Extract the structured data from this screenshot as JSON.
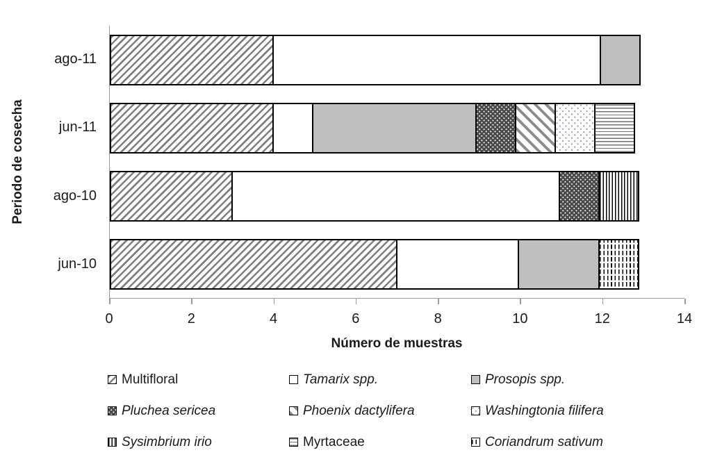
{
  "chart_data": {
    "type": "bar",
    "orientation": "horizontal",
    "stacked": true,
    "title": "",
    "categories": [
      "ago-11",
      "jun-11",
      "ago-10",
      "jun-10"
    ],
    "series": [
      {
        "name": "Multifloral",
        "pattern": "diagonal-hatch-forward",
        "italic": false,
        "values": [
          4,
          4,
          3,
          7
        ]
      },
      {
        "name": "Tamarix spp.",
        "pattern": "solid-white",
        "italic": true,
        "values": [
          8,
          1,
          8,
          3
        ]
      },
      {
        "name": "Prosopis spp.",
        "pattern": "solid-gray",
        "italic": true,
        "values": [
          1,
          4,
          0,
          2
        ]
      },
      {
        "name": "Pluchea sericea",
        "pattern": "dark-white-dots",
        "italic": true,
        "values": [
          0,
          1,
          1,
          0
        ]
      },
      {
        "name": "Phoenix dactylifera",
        "pattern": "diagonal-hatch-back",
        "italic": true,
        "values": [
          0,
          1,
          0,
          0
        ]
      },
      {
        "name": "Washingtonia filifera",
        "pattern": "light-blue-dots",
        "italic": true,
        "values": [
          0,
          1,
          0,
          0
        ]
      },
      {
        "name": "Sysimbrium irio",
        "pattern": "vertical-lines",
        "italic": true,
        "values": [
          0,
          0,
          1,
          0
        ]
      },
      {
        "name": "Myrtaceae",
        "pattern": "horizontal-lines",
        "italic": false,
        "values": [
          0,
          1,
          0,
          0
        ]
      },
      {
        "name": "Coriandrum sativum",
        "pattern": "vertical-dashes",
        "italic": true,
        "values": [
          0,
          0,
          0,
          1
        ]
      }
    ],
    "xlabel": "Número de muestras",
    "ylabel": "Periodo de cosecha",
    "xlim": [
      0,
      14
    ],
    "xticks": [
      0,
      2,
      4,
      6,
      8,
      10,
      12,
      14
    ],
    "legend_position": "bottom",
    "legend_columns": 3,
    "grid": false
  },
  "colors": {
    "segment_border": "#000000",
    "axis_line": "#9b9b9b",
    "text": "#1a1a1a",
    "hatch_gray": "#7f7f7f",
    "solid_gray": "#bfbfbf",
    "dark_dot_fill": "#4a4a4a",
    "light_dot": "#8795b1",
    "background": "#ffffff"
  }
}
